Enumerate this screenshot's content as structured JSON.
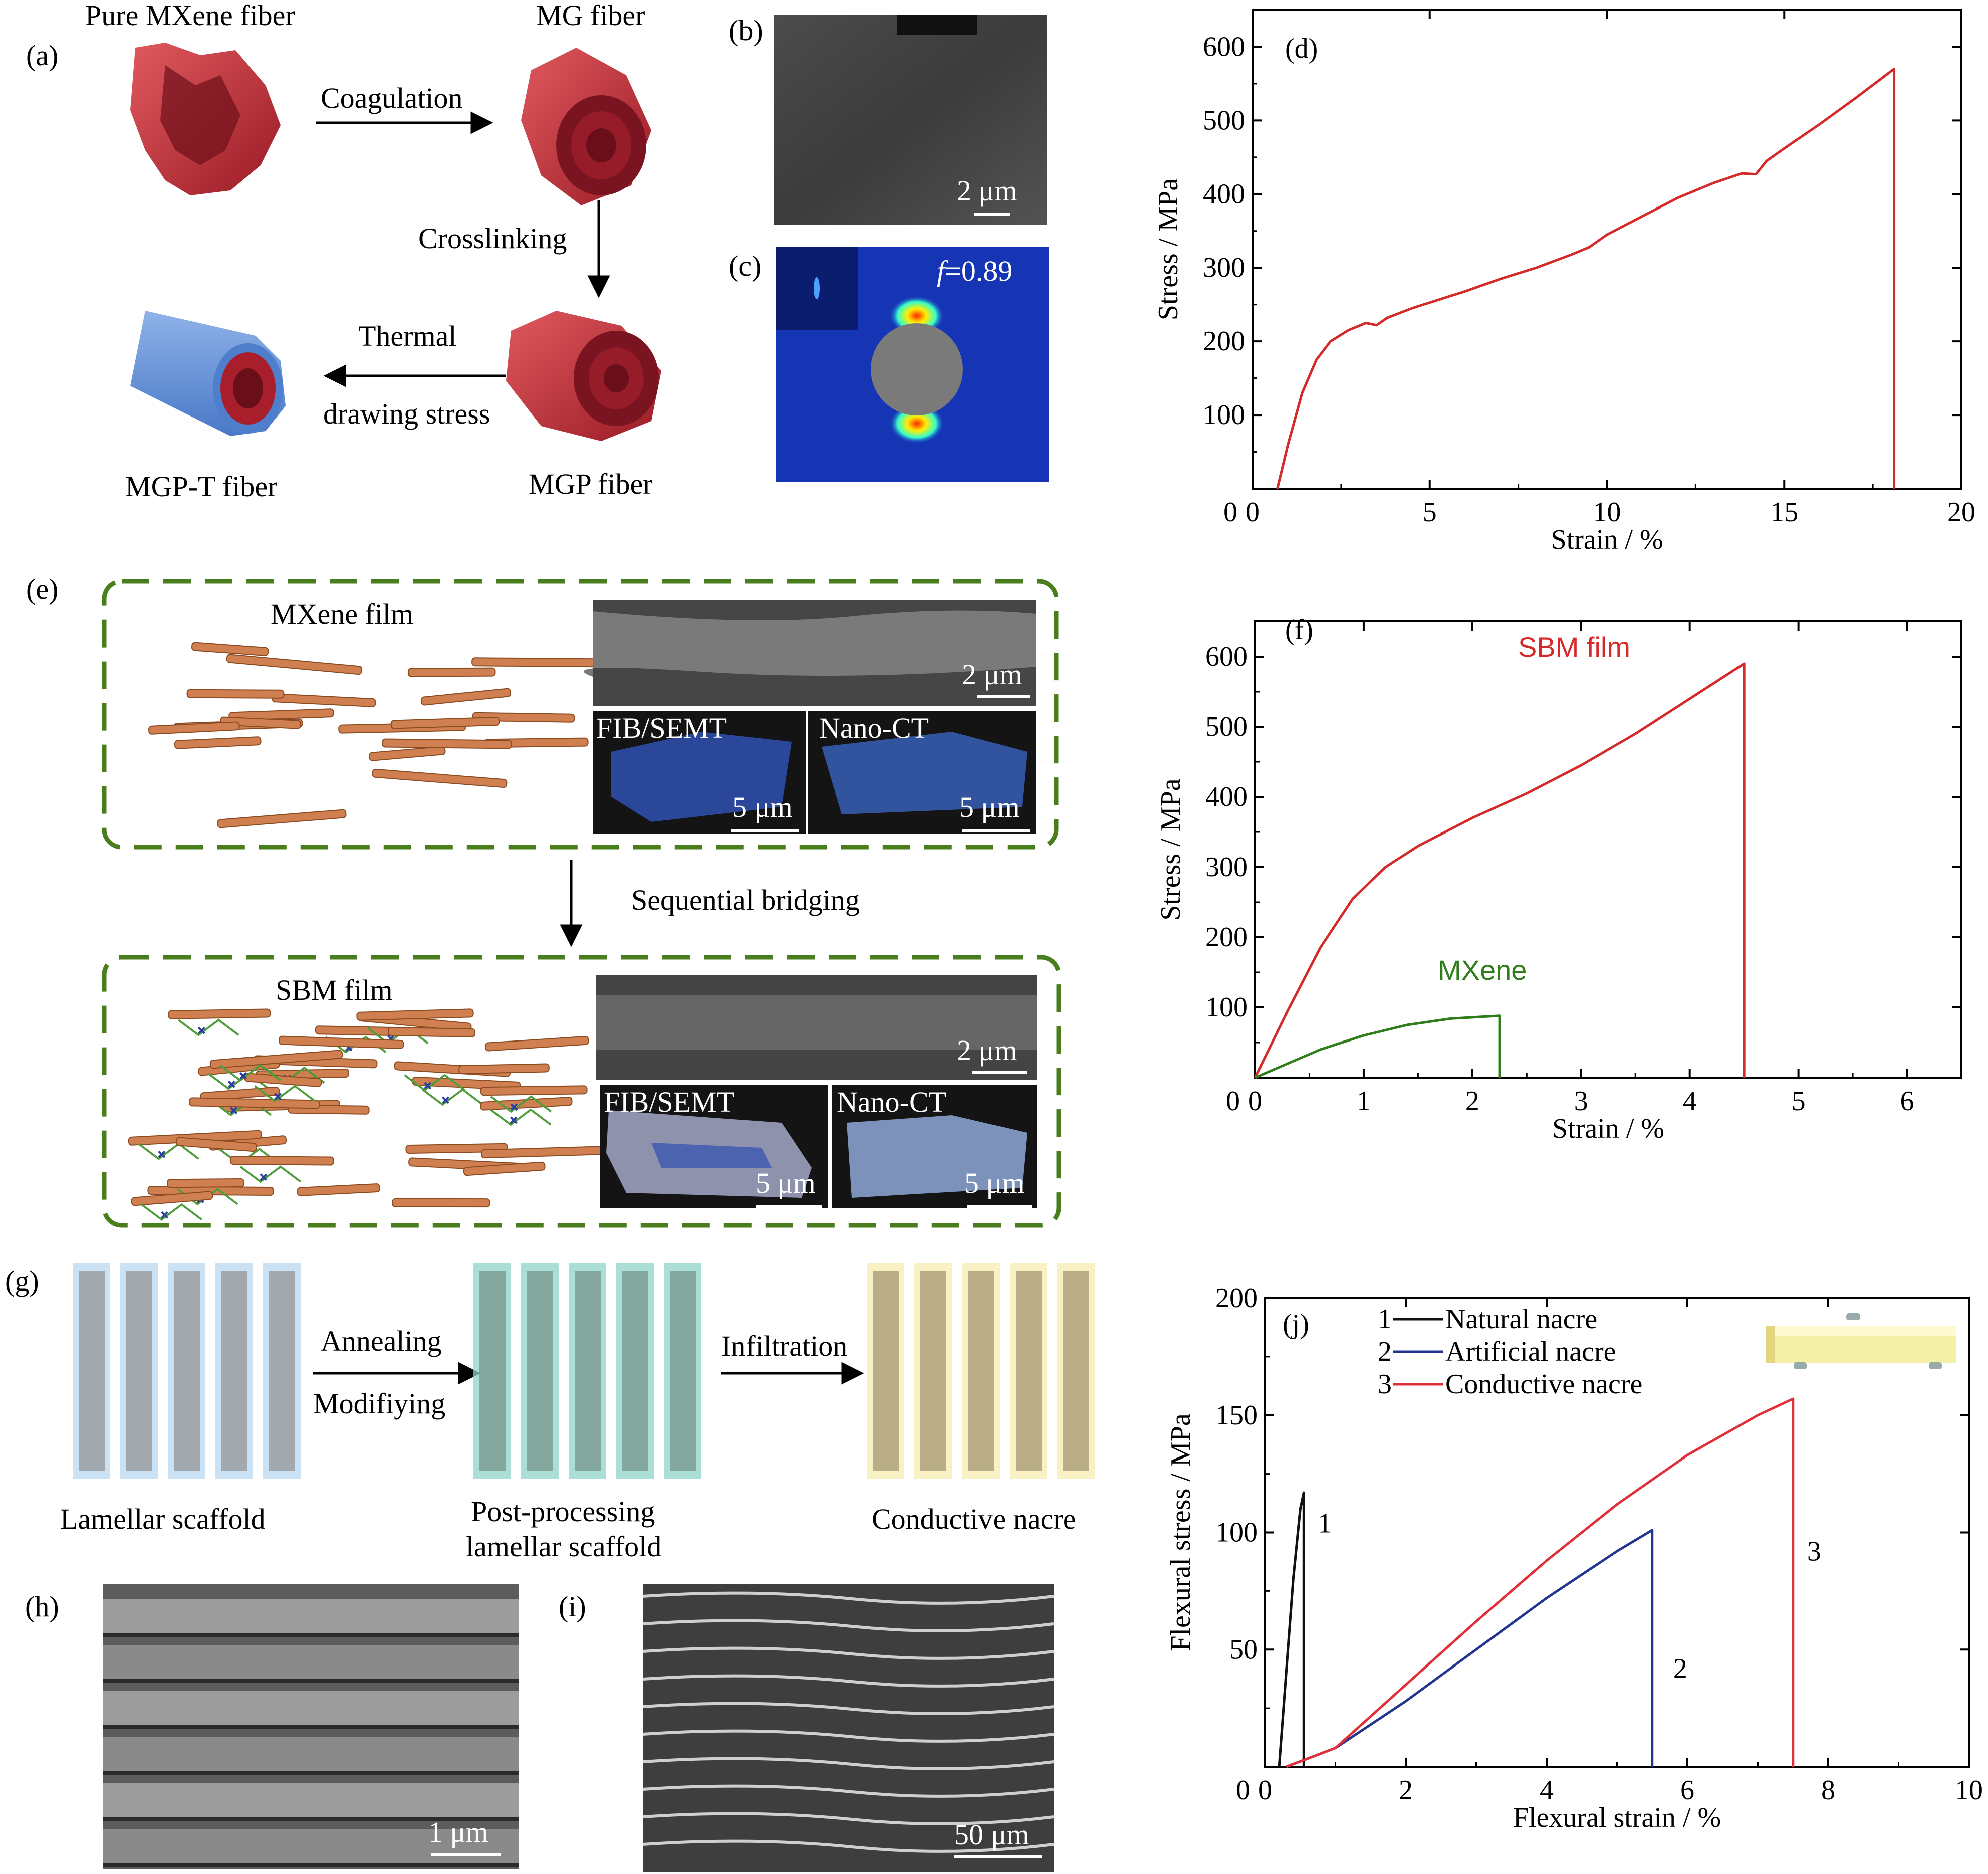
{
  "colors": {
    "red": "#d42a2a",
    "green": "#2e7d1a",
    "blue": "#23358f",
    "black": "#111111",
    "nacre_red": "#e0313b",
    "dash_green": "#4a7d1c"
  },
  "panel_labels": {
    "a": "(a)",
    "b": "(b)",
    "c": "(c)",
    "d": "(d)",
    "e": "(e)",
    "f": "(f)",
    "g": "(g)",
    "h": "(h)",
    "i": "(i)",
    "j": "(j)"
  },
  "a": {
    "pure_mxene": "Pure MXene fiber",
    "mg": "MG fiber",
    "coagulation": "Coagulation",
    "crosslinking": "Crosslinking",
    "thermal": "Thermal",
    "drawing_stress": "drawing stress",
    "mgp_t": "MGP-T fiber",
    "mgp": "MGP fiber"
  },
  "b": {
    "scale": "2 μm"
  },
  "c": {
    "f_label": "f",
    "f_value": "=0.89"
  },
  "e": {
    "mxene_film": "MXene film",
    "sbm_film": "SBM film",
    "sequential": "Sequential bridging",
    "scale_sem": "2 μm",
    "fib": "FIB/SEMT",
    "nanoct": "Nano-CT",
    "scale_5": "5 μm"
  },
  "g": {
    "annealing": "Annealing",
    "modifying": "Modifiying",
    "infiltration": "Infiltration",
    "lamellar": "Lamellar scaffold",
    "post1": "Post-processing",
    "post2": "lamellar scaffold",
    "conductive": "Conductive nacre"
  },
  "h": {
    "scale": "1 μm"
  },
  "i": {
    "scale": "50 μm"
  },
  "chart_data": [
    {
      "id": "d",
      "type": "line",
      "xlabel": "Strain / %",
      "ylabel": "Stress / MPa",
      "xlim": [
        0,
        20
      ],
      "ylim": [
        0,
        650
      ],
      "xticks": [
        0,
        5,
        10,
        15,
        20
      ],
      "yticks": [
        100,
        200,
        300,
        400,
        500,
        600
      ],
      "series": [
        {
          "color": "#d42a2a",
          "x": [
            0.7,
            1.0,
            1.4,
            1.8,
            2.2,
            2.7,
            3.2,
            3.5,
            3.8,
            4.5,
            6,
            7,
            8,
            9,
            9.5,
            10,
            11,
            12,
            13,
            13.8,
            14.2,
            14.5,
            15,
            16,
            17,
            18.1,
            18.1
          ],
          "y": [
            0,
            60,
            130,
            175,
            200,
            215,
            225,
            222,
            232,
            245,
            268,
            285,
            300,
            318,
            328,
            345,
            370,
            395,
            415,
            428,
            427,
            445,
            462,
            495,
            530,
            570,
            0
          ]
        }
      ]
    },
    {
      "id": "f",
      "type": "line",
      "xlabel": "Strain / %",
      "ylabel": "Stress / MPa",
      "xlim": [
        0,
        6.5
      ],
      "ylim": [
        0,
        650
      ],
      "xticks": [
        0,
        1,
        2,
        3,
        4,
        5,
        6
      ],
      "yticks": [
        100,
        200,
        300,
        400,
        500,
        600
      ],
      "series": [
        {
          "name": "SBM film",
          "color": "#d42a2a",
          "x": [
            0,
            0.3,
            0.6,
            0.9,
            1.2,
            1.5,
            2,
            2.5,
            3,
            3.5,
            4,
            4.5,
            4.5
          ],
          "y": [
            0,
            95,
            185,
            255,
            300,
            330,
            370,
            405,
            445,
            490,
            540,
            590,
            0
          ]
        },
        {
          "name": "MXene",
          "color": "#2e7d1a",
          "x": [
            0,
            0.3,
            0.6,
            1,
            1.4,
            1.8,
            2.25,
            2.25
          ],
          "y": [
            0,
            20,
            40,
            60,
            75,
            84,
            88,
            0
          ]
        }
      ]
    },
    {
      "id": "j",
      "type": "line",
      "xlabel": "Flexural strain / %",
      "ylabel": "Flexural stress / MPa",
      "xlim": [
        0,
        10
      ],
      "ylim": [
        0,
        200
      ],
      "xticks": [
        0,
        2,
        4,
        6,
        8,
        10
      ],
      "yticks": [
        50,
        100,
        150,
        200
      ],
      "legend": [
        {
          "num": "1",
          "name": "Natural nacre",
          "color": "#111111"
        },
        {
          "num": "2",
          "name": "Artificial nacre",
          "color": "#23358f"
        },
        {
          "num": "3",
          "name": "Conductive nacre",
          "color": "#e0313b"
        }
      ],
      "series": [
        {
          "num": "1",
          "color": "#111111",
          "x": [
            0.2,
            0.3,
            0.4,
            0.5,
            0.55,
            0.55
          ],
          "y": [
            0,
            40,
            80,
            110,
            117,
            0
          ]
        },
        {
          "num": "2",
          "color": "#23358f",
          "x": [
            0.3,
            1,
            2,
            3,
            4,
            5,
            5.5,
            5.5
          ],
          "y": [
            0,
            8,
            28,
            50,
            72,
            92,
            101,
            0
          ]
        },
        {
          "num": "3",
          "color": "#e0313b",
          "x": [
            0.3,
            1,
            2,
            3,
            4,
            5,
            6,
            7,
            7.5,
            7.5
          ],
          "y": [
            0,
            8,
            35,
            62,
            88,
            112,
            133,
            150,
            157,
            0
          ]
        }
      ]
    }
  ]
}
